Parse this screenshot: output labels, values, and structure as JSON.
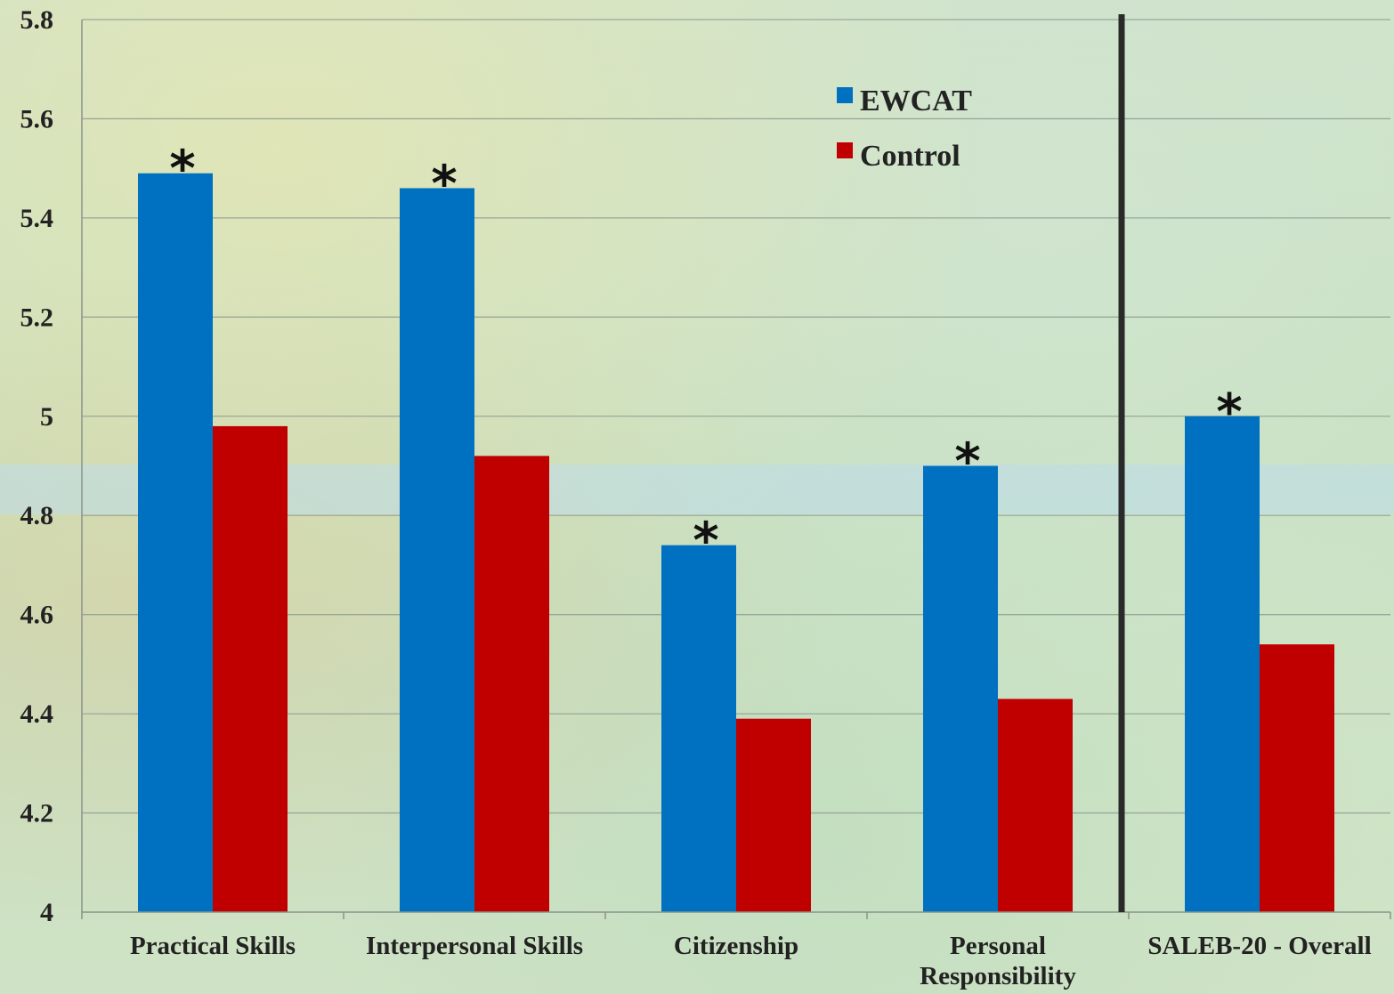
{
  "chart_data": {
    "type": "bar",
    "categories": [
      "Practical Skills",
      "Interpersonal Skills",
      "Citizenship",
      "Personal Responsibility",
      "SALEB-20 - Overall"
    ],
    "category_lines": [
      [
        "Practical Skills"
      ],
      [
        "Interpersonal Skills"
      ],
      [
        "Citizenship"
      ],
      [
        "Personal",
        "Responsibility"
      ],
      [
        "SALEB-20 - Overall"
      ]
    ],
    "series": [
      {
        "name": "EWCAT",
        "color": "#0070C0",
        "values": [
          5.49,
          5.46,
          4.74,
          4.9,
          5.0
        ]
      },
      {
        "name": "Control",
        "color": "#C00000",
        "values": [
          4.98,
          4.92,
          4.39,
          4.43,
          4.54
        ]
      }
    ],
    "ylim": [
      4,
      5.8
    ],
    "yticks": [
      "4",
      "4.2",
      "4.4",
      "4.6",
      "4.8",
      "5",
      "5.2",
      "5.4",
      "5.6",
      "5.8"
    ],
    "significance_marker": "*",
    "significant": [
      true,
      true,
      true,
      true,
      true
    ],
    "grid": true,
    "legend_position": "top-center",
    "title": "",
    "xlabel": "",
    "ylabel": "",
    "separator_before_category": 4
  }
}
